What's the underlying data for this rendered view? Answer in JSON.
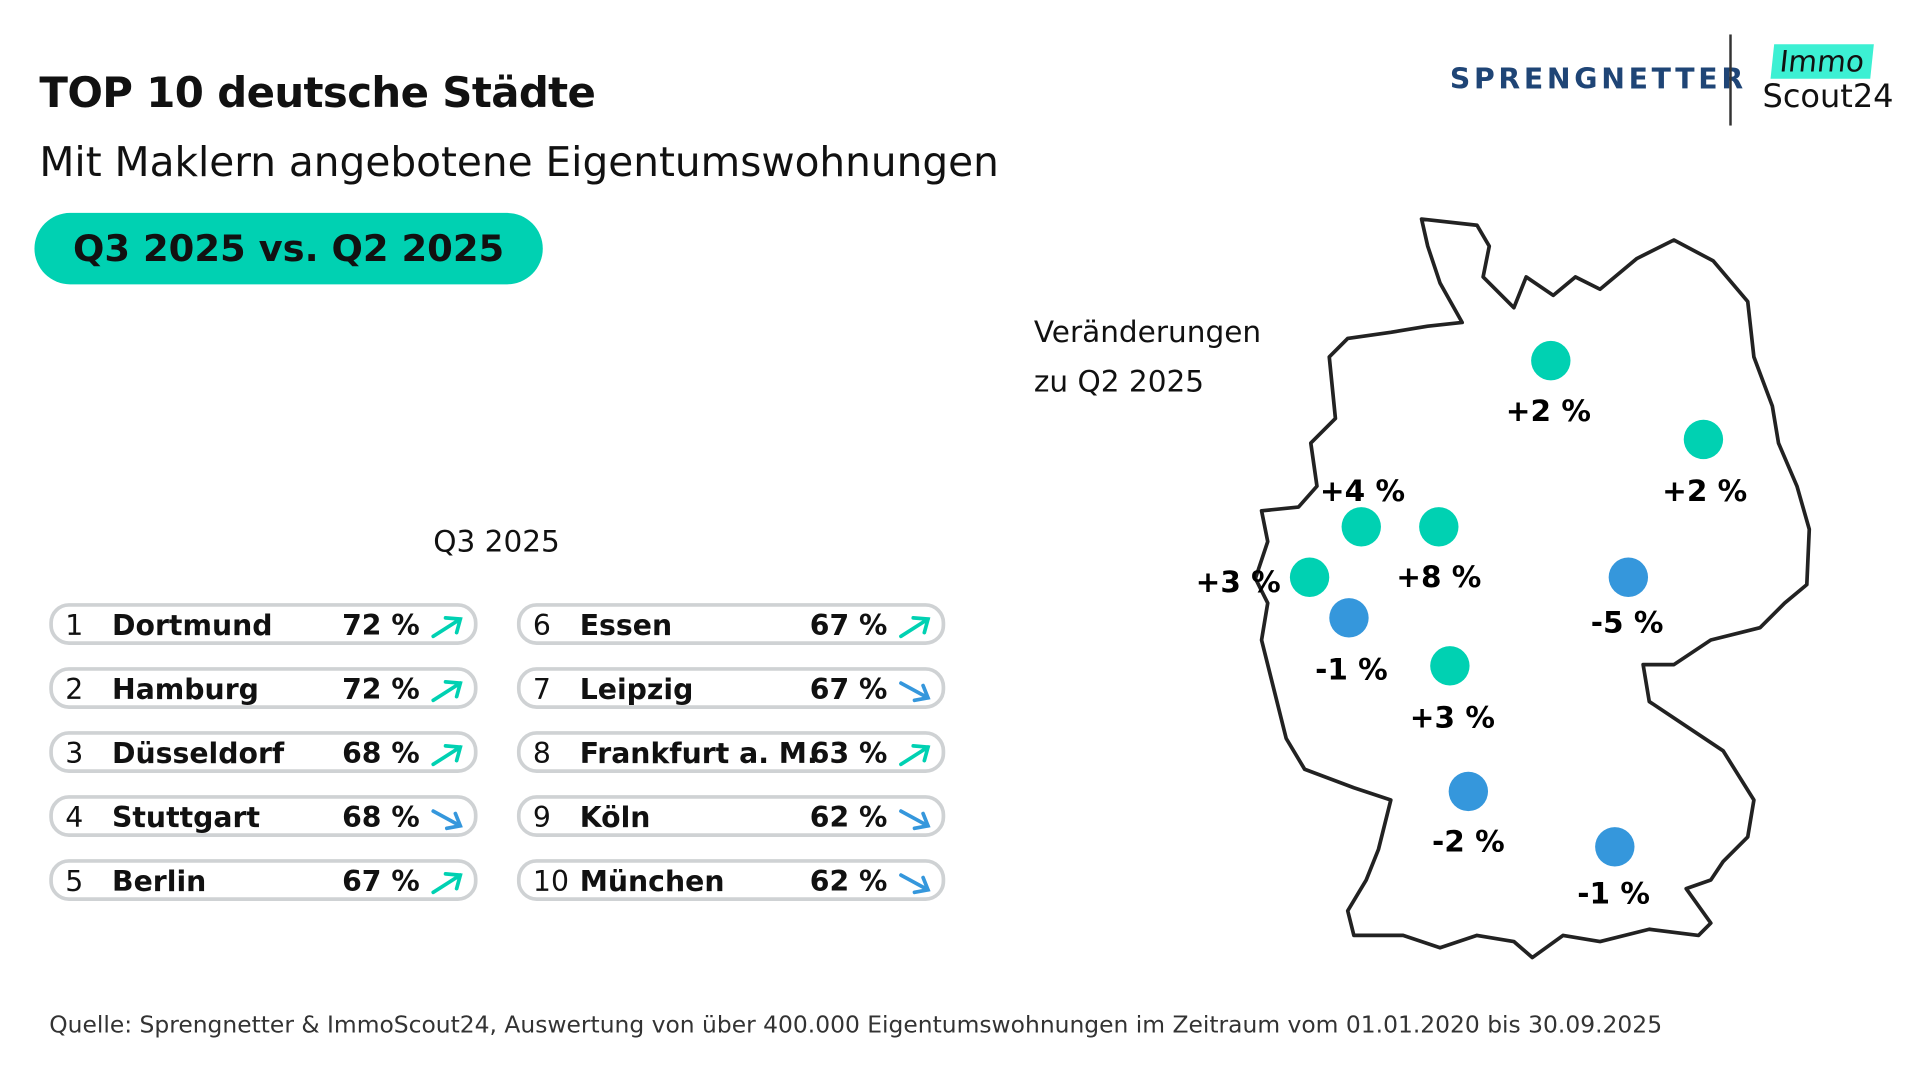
{
  "header": {
    "title": "TOP 10 deutsche Städte",
    "subtitle": "Mit Maklern angebotene Eigentumswohnungen",
    "badge": "Q3 2025 vs. Q2 2025"
  },
  "logos": {
    "sprengnetter": "SPRENGNETTER",
    "immo": "Immo",
    "scout": "Scout24"
  },
  "ranking": {
    "column_header": "Q3 2025",
    "rows": [
      {
        "rank": "1",
        "city": "Dortmund",
        "value": "72 %",
        "trend": "up"
      },
      {
        "rank": "2",
        "city": "Hamburg",
        "value": "72 %",
        "trend": "up"
      },
      {
        "rank": "3",
        "city": "Düsseldorf",
        "value": "68 %",
        "trend": "up"
      },
      {
        "rank": "4",
        "city": "Stuttgart",
        "value": "68 %",
        "trend": "down"
      },
      {
        "rank": "5",
        "city": "Berlin",
        "value": "67 %",
        "trend": "up"
      },
      {
        "rank": "6",
        "city": "Essen",
        "value": "67 %",
        "trend": "up"
      },
      {
        "rank": "7",
        "city": "Leipzig",
        "value": "67 %",
        "trend": "down"
      },
      {
        "rank": "8",
        "city": "Frankfurt a. M.",
        "value": "63 %",
        "trend": "up"
      },
      {
        "rank": "9",
        "city": "Köln",
        "value": "62 %",
        "trend": "down"
      },
      {
        "rank": "10",
        "city": "München",
        "value": "62 %",
        "trend": "down"
      }
    ]
  },
  "map": {
    "legend_line1": "Veränderungen",
    "legend_line2": "zu Q2 2025",
    "markers": [
      {
        "label": "+2 %",
        "trend": "up"
      },
      {
        "label": "+2 %",
        "trend": "up"
      },
      {
        "label": "+4 %",
        "trend": "up"
      },
      {
        "label": "+8 %",
        "trend": "up"
      },
      {
        "label": "+3 %",
        "trend": "up"
      },
      {
        "label": "-5 %",
        "trend": "down"
      },
      {
        "label": "-1 %",
        "trend": "down"
      },
      {
        "label": "+3 %",
        "trend": "up"
      },
      {
        "label": "-2 %",
        "trend": "down"
      },
      {
        "label": "-1 %",
        "trend": "down"
      }
    ]
  },
  "colors": {
    "up": "#00d1b2",
    "down": "#3597dc",
    "brand_blue": "#1f4576"
  },
  "footer": {
    "source": "Quelle: Sprengnetter & ImmoScout24, Auswertung von über 400.000 Eigentumswohnungen im Zeitraum vom 01.01.2020 bis 30.09.2025"
  }
}
